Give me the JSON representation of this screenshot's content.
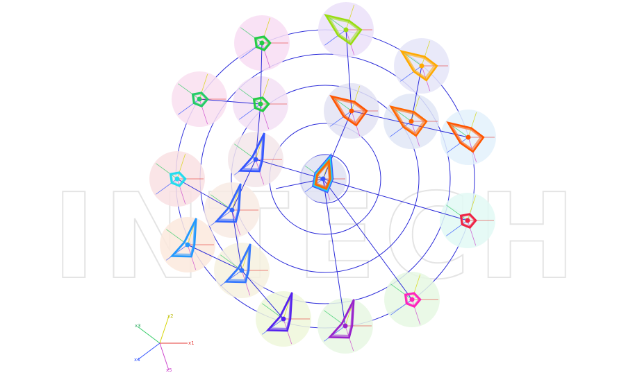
{
  "watermark": "INTECH",
  "axis_legend": {
    "axes": [
      {
        "name": "x1",
        "color": "#e53935"
      },
      {
        "name": "x2",
        "color": "#d4d400"
      },
      {
        "name": "x3",
        "color": "#33cc66"
      },
      {
        "name": "x4",
        "color": "#3355ff"
      },
      {
        "name": "x5",
        "color": "#cc44cc"
      }
    ]
  },
  "rings": 5,
  "glyphs": [
    {
      "id": "center",
      "color": "#3388ff",
      "bg": "#dfe2f3",
      "shape": "kite-down",
      "stack": [
        "#3355ff",
        "#33aaff",
        "#22dddd",
        "#ff6600"
      ]
    },
    {
      "id": "g-top-1",
      "color": "#99dd11",
      "bg": "#ebe0f9",
      "shape": "kite-right"
    },
    {
      "id": "g-top-2",
      "color": "#22cc44",
      "bg": "#f8ddf3",
      "shape": "pentagon-small"
    },
    {
      "id": "g-top-3",
      "color": "#ffaa00",
      "bg": "#e5e5f8",
      "shape": "kite-right"
    },
    {
      "id": "g-left-1",
      "color": "#22cc66",
      "bg": "#f9dff0",
      "shape": "pentagon-small"
    },
    {
      "id": "g-mid-1",
      "color": "#22cc44",
      "bg": "#f3e0f4",
      "shape": "pentagon-small"
    },
    {
      "id": "g-or-1",
      "color": "#ff5500",
      "bg": "#e3e3f3",
      "shape": "kite-right"
    },
    {
      "id": "g-or-2",
      "color": "#ff6600",
      "bg": "#e0e6f6",
      "shape": "kite-right"
    },
    {
      "id": "g-or-3",
      "color": "#ff5500",
      "bg": "#e3f1fb",
      "shape": "kite-right"
    },
    {
      "id": "g-bl-1",
      "color": "#3355ff",
      "bg": "#f3e6ea",
      "shape": "kite-up"
    },
    {
      "id": "g-left-2",
      "color": "#22ddee",
      "bg": "#f9e0e3",
      "shape": "pentagon-small"
    },
    {
      "id": "g-bl-2",
      "color": "#3366ff",
      "bg": "#f8ebe4",
      "shape": "kite-up"
    },
    {
      "id": "g-left-3",
      "color": "#2299ff",
      "bg": "#fbe9dd",
      "shape": "kite-up"
    },
    {
      "id": "g-bl-3",
      "color": "#3377ff",
      "bg": "#f6f1df",
      "shape": "kite-up"
    },
    {
      "id": "g-bot-1",
      "color": "#5522ee",
      "bg": "#eef7da",
      "shape": "kite-up"
    },
    {
      "id": "g-bot-2",
      "color": "#9922cc",
      "bg": "#e8f7e3",
      "shape": "kite-up"
    },
    {
      "id": "g-bot-3",
      "color": "#ff22bb",
      "bg": "#e6f8e3",
      "shape": "pentagon-small"
    },
    {
      "id": "g-right-1",
      "color": "#ee2244",
      "bg": "#e2f9f5",
      "shape": "pentagon-small"
    }
  ],
  "links": [
    [
      "center",
      "g-or-1"
    ],
    [
      "g-or-1",
      "g-or-3"
    ],
    [
      "center",
      "g-right-1"
    ],
    [
      "center",
      "g-bot-3"
    ],
    [
      "center",
      "g-bot-2"
    ],
    [
      "g-bl-1",
      "g-mid-1"
    ],
    [
      "g-mid-1",
      "g-top-2"
    ],
    [
      "g-bl-1",
      "g-bl-2"
    ],
    [
      "g-bl-2",
      "g-bl-3"
    ],
    [
      "g-bl-3",
      "g-bot-1"
    ],
    [
      "g-left-1",
      "g-mid-1"
    ],
    [
      "g-left-2",
      "g-bl-2"
    ],
    [
      "g-left-3",
      "g-bl-3"
    ],
    [
      "g-or-2",
      "g-top-3"
    ],
    [
      "g-or-1",
      "g-top-1"
    ],
    [
      "center",
      "g-bl-1"
    ]
  ]
}
